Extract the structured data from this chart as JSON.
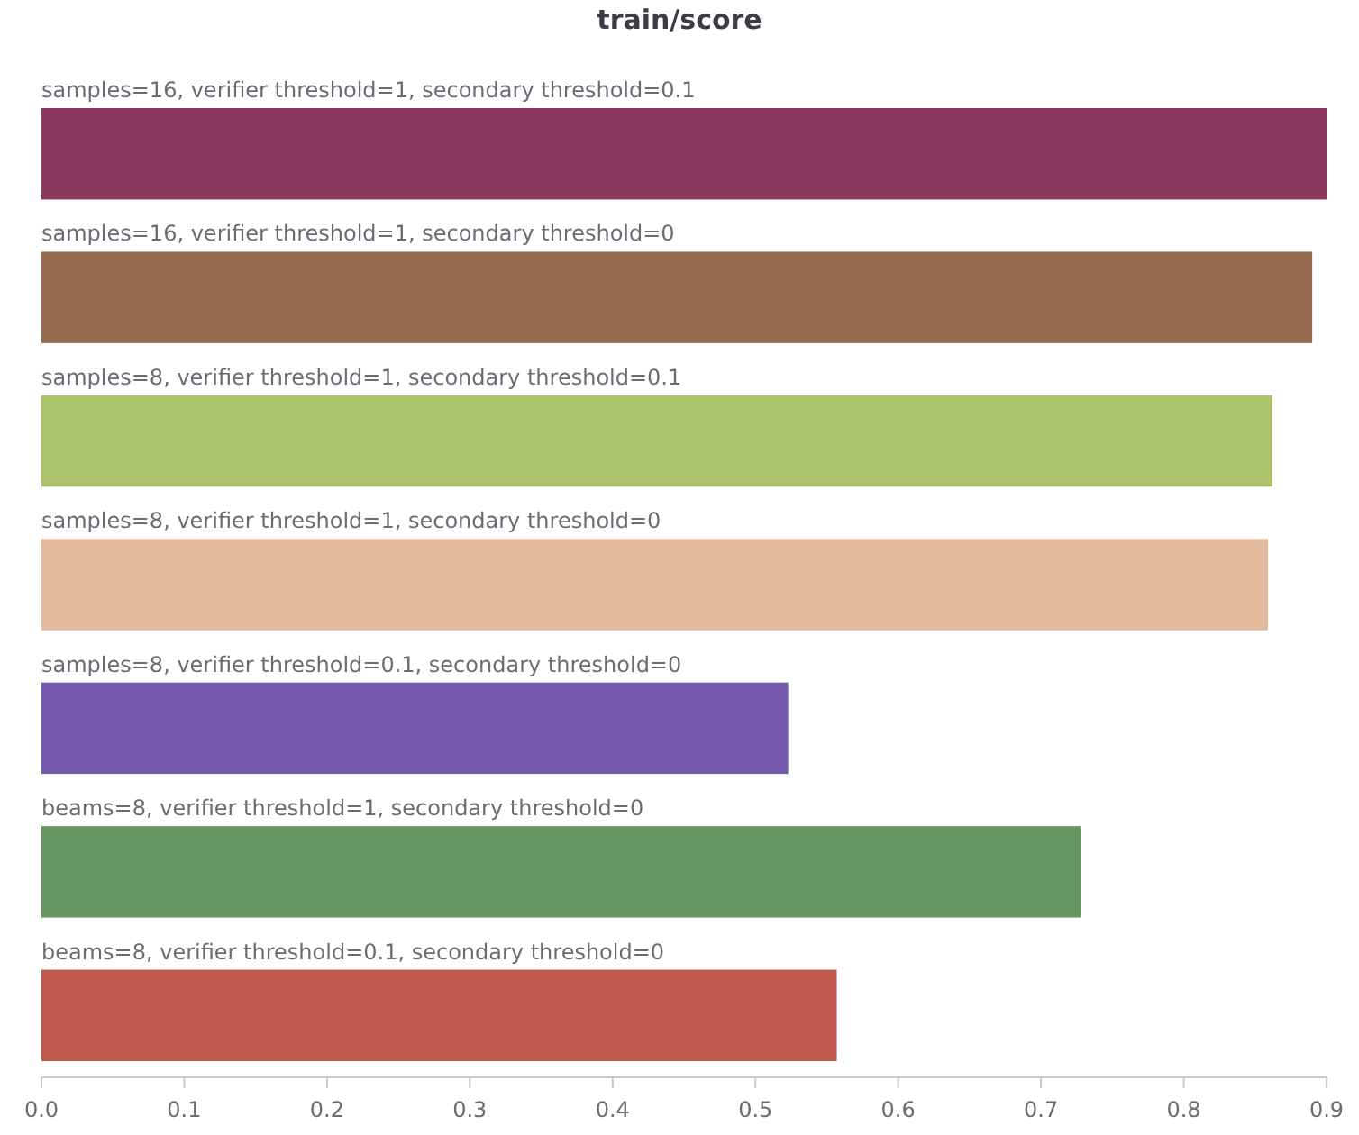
{
  "chart_data": {
    "type": "bar",
    "orientation": "horizontal",
    "title": "train/score",
    "categories": [
      "samples=16, verifier threshold=1, secondary threshold=0.1",
      "samples=16, verifier threshold=1, secondary threshold=0",
      "samples=8, verifier threshold=1, secondary threshold=0.1",
      "samples=8, verifier threshold=1, secondary threshold=0",
      "samples=8, verifier threshold=0.1, secondary threshold=0",
      "beams=8, verifier threshold=1, secondary threshold=0",
      "beams=8, verifier threshold=0.1, secondary threshold=0"
    ],
    "values": [
      0.9,
      0.89,
      0.862,
      0.859,
      0.523,
      0.728,
      0.557
    ],
    "colors": [
      "#8b3a5e",
      "#976b50",
      "#adc36b",
      "#e2b99b",
      "#7459ad",
      "#669763",
      "#bf594d"
    ],
    "xlim": [
      0,
      0.9
    ],
    "xticks": [
      {
        "value": 0,
        "label": "0.0"
      },
      0.1,
      0.2,
      0.3,
      0.4,
      0.5,
      0.6,
      0.7,
      0.8,
      0.9
    ],
    "grid": false
  }
}
